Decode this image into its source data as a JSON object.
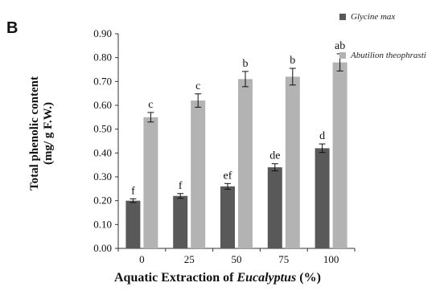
{
  "panel_label": "B",
  "y_label_line1": "Total phenolic content",
  "y_label_line2": "(mg/ g F.W.)",
  "x_label_prefix": "Aquatic Extraction of",
  "x_label_italic": "Eucalyptus",
  "x_label_suffix": "(%)",
  "chart_data": {
    "type": "bar",
    "categories": [
      "0",
      "25",
      "50",
      "75",
      "100"
    ],
    "ylim": [
      0,
      0.9
    ],
    "yticks": [
      "0.00",
      "0.10",
      "0.20",
      "0.30",
      "0.40",
      "0.50",
      "0.60",
      "0.70",
      "0.80",
      "0.90"
    ],
    "grid": false,
    "legend_position": "top-right",
    "series": [
      {
        "name": "Glycine max",
        "color": "#595959",
        "values": [
          0.2,
          0.22,
          0.26,
          0.34,
          0.42
        ],
        "errors": [
          0.008,
          0.01,
          0.012,
          0.015,
          0.018
        ],
        "labels": [
          "f",
          "f",
          "ef",
          "de",
          "d"
        ]
      },
      {
        "name": "Abutilion theophrasti",
        "color": "#b3b3b3",
        "values": [
          0.55,
          0.62,
          0.71,
          0.72,
          0.78
        ],
        "errors": [
          0.02,
          0.028,
          0.032,
          0.035,
          0.036
        ],
        "labels": [
          "c",
          "c",
          "b",
          "b",
          "ab"
        ]
      }
    ]
  }
}
